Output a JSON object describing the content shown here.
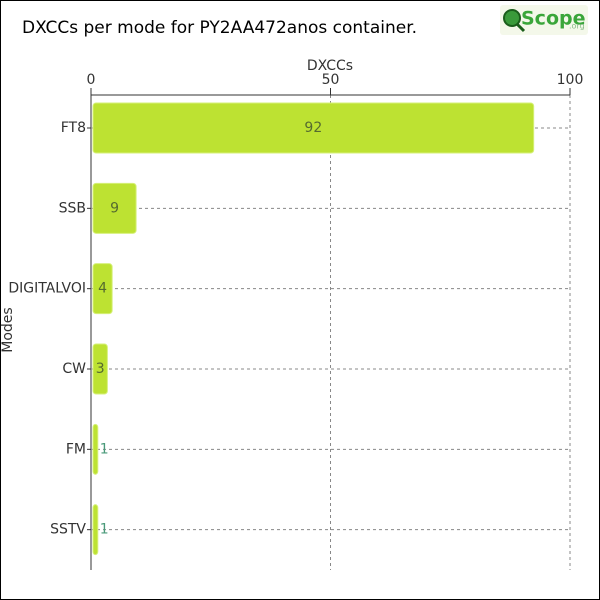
{
  "chart_data": {
    "type": "bar",
    "orientation": "horizontal",
    "title": "DXCCs per mode for PY2AA472anos container.",
    "logo": {
      "main": "Scope",
      "suffix": ".org"
    },
    "x_label": "DXCCs",
    "y_label": "Modes",
    "categories": [
      "FT8",
      "SSB",
      "DIGITALVOI",
      "CW",
      "FM",
      "SSTV"
    ],
    "values": [
      92,
      9,
      4,
      3,
      1,
      1
    ],
    "color": "#bde232",
    "xlim": [
      0,
      100
    ],
    "xticks": [
      0,
      50,
      100
    ],
    "grid": true
  }
}
